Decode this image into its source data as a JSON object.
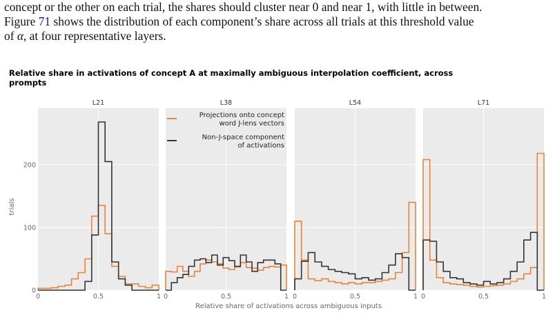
{
  "paragraph": {
    "line1": "concept or the other on each trial, the shares should cluster near 0 and near 1, with little in between.",
    "line2_pre": "Figure ",
    "figure_ref": "71",
    "line2_post": " shows the distribution of each component’s share across all trials at this threshold value",
    "line3_pre": "of ",
    "alpha": "α",
    "line3_post": ", at four representative layers."
  },
  "colors": {
    "projection": "#e8833a",
    "non_j": "#333333",
    "panel_bg": "#ebebeb",
    "grid": "#ffffff"
  },
  "chart_data": {
    "type": "histogram",
    "title_line1": "Relative share in activations of concept A at maximally ambiguous interpolation coefficient, across",
    "title_line2": "prompts",
    "xlabel": "Relative share of activations across ambiguous inputs",
    "ylabel": "trials",
    "xlim": [
      0,
      1
    ],
    "ylim": [
      0,
      290
    ],
    "x_ticks": [
      "0",
      "0.5",
      "1"
    ],
    "y_ticks": [
      "0",
      "100",
      "200"
    ],
    "grid": true,
    "legend_placement": "top-left of L38 panel",
    "legend": [
      {
        "line1": "Projections onto concept",
        "line2": "word J-lens vectors",
        "color": "#e8833a"
      },
      {
        "line1": "Non-J-space component",
        "line2": "of activations",
        "color": "#333333"
      }
    ],
    "bin_width": 0.04,
    "panels": [
      {
        "title": "L21",
        "series": [
          {
            "name": "Projections onto concept word J-lens vectors",
            "values": [
              3,
              3,
              4,
              6,
              8,
              18,
              28,
              50,
              118,
              135,
              90,
              38,
              22,
              10,
              10,
              6,
              4,
              8
            ]
          },
          {
            "name": "Non-J-space component of activations",
            "values": [
              0,
              0,
              0,
              0,
              0,
              0,
              0,
              14,
              88,
              268,
              205,
              45,
              18,
              8,
              0,
              0,
              0,
              0
            ]
          }
        ]
      },
      {
        "title": "L38",
        "series": [
          {
            "name": "Projections onto concept word J-lens vectors",
            "values": [
              30,
              29,
              38,
              30,
              22,
              30,
              42,
              48,
              45,
              42,
              35,
              33,
              37,
              44,
              36,
              35,
              32,
              36,
              38,
              37,
              40
            ]
          },
          {
            "name": "Non-J-space component of activations",
            "values": [
              0,
              12,
              20,
              25,
              38,
              48,
              50,
              44,
              56,
              40,
              52,
              47,
              38,
              56,
              45,
              30,
              44,
              48,
              48,
              42,
              0
            ]
          }
        ]
      },
      {
        "title": "L54",
        "series": [
          {
            "name": "Projections onto concept word J-lens vectors",
            "values": [
              110,
              48,
              18,
              15,
              18,
              14,
              12,
              10,
              12,
              10,
              12,
              12,
              14,
              16,
              18,
              28,
              60,
              140
            ]
          },
          {
            "name": "Non-J-space component of activations",
            "values": [
              18,
              46,
              60,
              45,
              38,
              33,
              30,
              28,
              26,
              18,
              20,
              16,
              18,
              28,
              40,
              58,
              52,
              0
            ]
          }
        ]
      },
      {
        "title": "L71",
        "series": [
          {
            "name": "Projections onto concept word J-lens vectors",
            "values": [
              208,
              48,
              20,
              12,
              10,
              9,
              8,
              6,
              5,
              6,
              7,
              8,
              10,
              14,
              18,
              26,
              36,
              218
            ]
          },
          {
            "name": "Non-J-space component of activations",
            "values": [
              80,
              78,
              45,
              30,
              20,
              18,
              12,
              10,
              8,
              14,
              10,
              12,
              18,
              30,
              45,
              80,
              92,
              0
            ]
          }
        ]
      }
    ]
  }
}
